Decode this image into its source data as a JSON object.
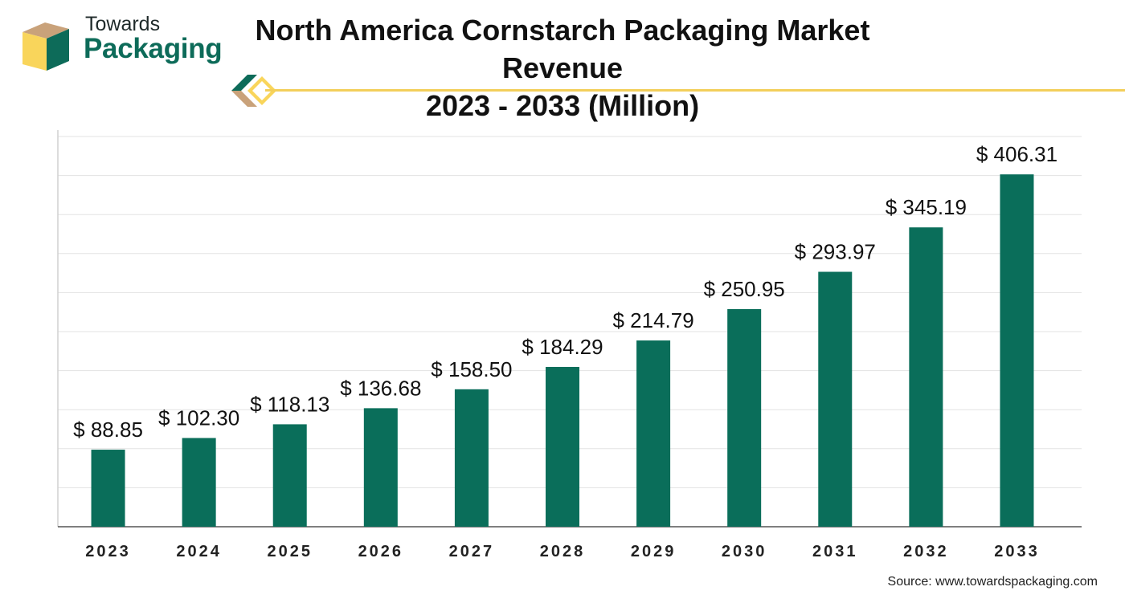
{
  "brand": {
    "line1": "Towards",
    "line2": "Packaging",
    "colors": {
      "green": "#0d6b59",
      "tan": "#c9a27a",
      "yellow": "#f9d55b"
    }
  },
  "title_line1": "North America Cornstarch Packaging Market Revenue",
  "title_line2": "2023 - 2033 (Million)",
  "source": "Source: www.towardspackaging.com",
  "chart_data": {
    "type": "bar",
    "title": "North America Cornstarch Packaging Market Revenue 2023 - 2033 (Million)",
    "categories": [
      "2023",
      "2024",
      "2025",
      "2026",
      "2027",
      "2028",
      "2029",
      "2030",
      "2031",
      "2032",
      "2033"
    ],
    "values": [
      88.85,
      102.3,
      118.13,
      136.68,
      158.5,
      184.29,
      214.79,
      250.95,
      293.97,
      345.19,
      406.31
    ],
    "data_labels": [
      "$ 88.85",
      "$ 102.30",
      "$ 118.13",
      "$ 136.68",
      "$ 158.50",
      "$ 184.29",
      "$ 214.79",
      "$ 250.95",
      "$ 293.97",
      "$ 345.19",
      "$ 406.31"
    ],
    "xlabel": "",
    "ylabel": "",
    "ylim": [
      0,
      450
    ],
    "grid": true,
    "bar_color": "#0a6e5a"
  }
}
